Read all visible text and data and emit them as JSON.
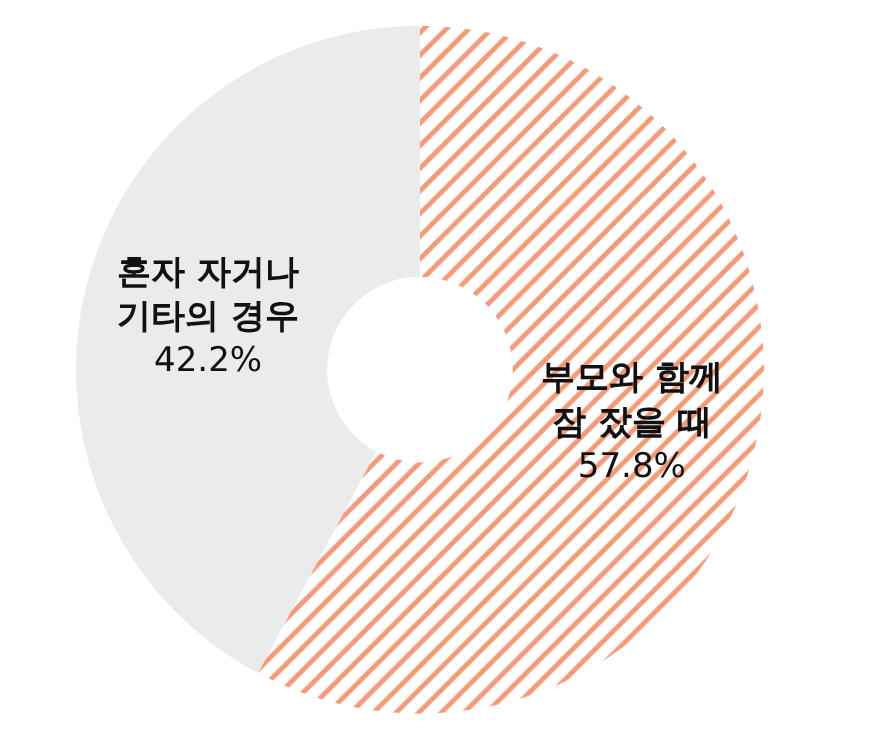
{
  "chart_data": {
    "type": "donut",
    "categories": [
      "부모와 함께\n잠 잤을 때",
      "혼자 자거나\n기타의 경우"
    ],
    "values": [
      57.8,
      42.2
    ],
    "colors": [
      "#f07850",
      "#ebebeb"
    ],
    "value_labels": [
      "57.8%",
      "42.2%"
    ],
    "legend": false
  }
}
